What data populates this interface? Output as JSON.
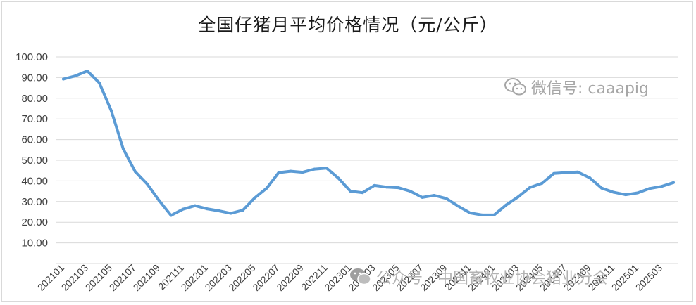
{
  "chart_data": {
    "type": "line",
    "title": "全国仔猪月平均价格情况（元/公斤）",
    "xlabel": "",
    "ylabel": "",
    "ylim": [
      0,
      100
    ],
    "yticks": [
      "10.00",
      "20.00",
      "30.00",
      "40.00",
      "50.00",
      "60.00",
      "70.00",
      "80.00",
      "90.00",
      "100.00"
    ],
    "grid": true,
    "line_color": "#5b9bd5",
    "x": [
      "202101",
      "202102",
      "202103",
      "202104",
      "202105",
      "202106",
      "202107",
      "202108",
      "202109",
      "202110",
      "202111",
      "202112",
      "202201",
      "202202",
      "202203",
      "202204",
      "202205",
      "202206",
      "202207",
      "202208",
      "202209",
      "202210",
      "202211",
      "202212",
      "202301",
      "202302",
      "202303",
      "202304",
      "202305",
      "202306",
      "202307",
      "202308",
      "202309",
      "202310",
      "202311",
      "202312",
      "202401",
      "202402",
      "202403",
      "202404",
      "202405",
      "202406",
      "202407",
      "202408",
      "202409",
      "202410",
      "202411",
      "202412",
      "202501",
      "202502",
      "202503",
      "202504"
    ],
    "xtick_labels": [
      "202101",
      "202103",
      "202105",
      "202107",
      "202109",
      "202111",
      "202201",
      "202203",
      "202205",
      "202207",
      "202209",
      "202211",
      "202301",
      "202303",
      "202305",
      "202307",
      "202309",
      "202311",
      "202401",
      "202403",
      "202405",
      "202407",
      "202409",
      "202411",
      "202501",
      "202503"
    ],
    "series": [
      {
        "values": [
          89.3,
          90.8,
          93.2,
          87.5,
          74.0,
          55.5,
          44.5,
          38.5,
          30.5,
          23.3,
          26.3,
          28.0,
          26.5,
          25.5,
          24.3,
          25.8,
          31.8,
          36.5,
          44.0,
          44.7,
          44.2,
          45.7,
          46.2,
          41.3,
          35.0,
          34.3,
          37.8,
          37.0,
          36.7,
          35.0,
          32.0,
          33.0,
          31.5,
          27.8,
          24.5,
          23.5,
          23.5,
          28.3,
          32.2,
          36.8,
          38.8,
          43.6,
          44.0,
          44.3,
          41.5,
          36.5,
          34.5,
          33.3,
          34.2,
          36.3,
          37.3,
          39.2
        ]
      }
    ]
  },
  "watermarks": {
    "top": "微信号: caaapig",
    "bottom": "公众号 · 中国畜牧业协会猪业分会",
    "icon": "wechat-icon"
  }
}
